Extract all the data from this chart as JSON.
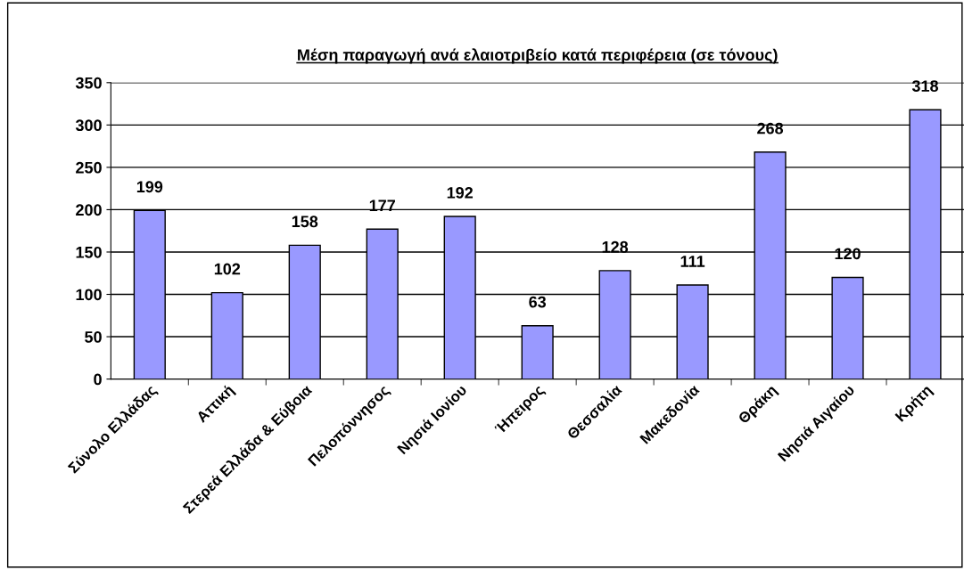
{
  "chart_data": {
    "type": "bar",
    "title": "Μέση παραγωγή ανά ελαιοτριβείο κατά περιφέρεια (σε τόνους)",
    "categories": [
      "Σύνολο Ελλάδας",
      "Αττική",
      "Στερεά Ελλάδα & Εύβοια",
      "Πελοπόννησος",
      "Νησιά Ιονίου",
      "Ήπειρος",
      "Θεσσαλία",
      "Μακεδονία",
      "Θράκη",
      "Νησιά Αιγαίου",
      "Κρήτη"
    ],
    "values": [
      199,
      102,
      158,
      177,
      192,
      63,
      128,
      111,
      268,
      120,
      318
    ],
    "color": "#9999ff",
    "ylim": [
      0,
      350
    ],
    "yticks": [
      0,
      50,
      100,
      150,
      200,
      250,
      300,
      350
    ],
    "grid": "y",
    "data_labels": true
  }
}
